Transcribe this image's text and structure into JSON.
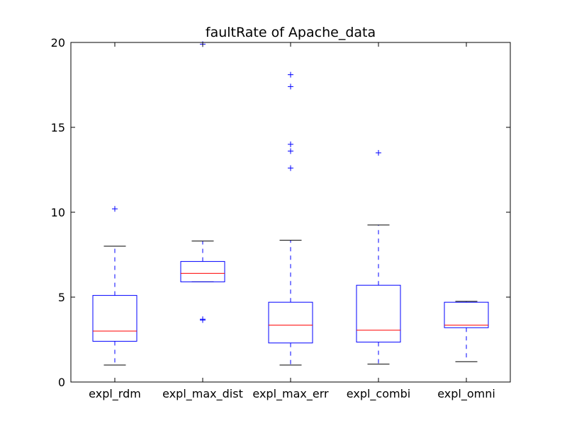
{
  "chart_data": {
    "type": "boxplot",
    "title": "faultRate of Apache_data",
    "xlabel": "",
    "ylabel": "",
    "ylim": [
      0,
      20
    ],
    "yticks": [
      "0",
      "5",
      "10",
      "15",
      "20"
    ],
    "grid": false,
    "categories": [
      "expl_rdm",
      "expl_max_dist",
      "expl_max_err",
      "expl_combi",
      "expl_omni"
    ],
    "boxes": [
      {
        "category": "expl_rdm",
        "whisker_low": 1.0,
        "q1": 2.4,
        "median": 3.0,
        "q3": 5.1,
        "whisker_high": 8.0,
        "outliers": [
          10.2
        ]
      },
      {
        "category": "expl_max_dist",
        "whisker_low": 5.9,
        "q1": 5.9,
        "median": 6.4,
        "q3": 7.1,
        "whisker_high": 8.3,
        "outliers": [
          3.65,
          3.7,
          19.9
        ]
      },
      {
        "category": "expl_max_err",
        "whisker_low": 1.0,
        "q1": 2.3,
        "median": 3.35,
        "q3": 4.7,
        "whisker_high": 8.35,
        "outliers": [
          12.6,
          13.6,
          14.0,
          17.4,
          18.1
        ]
      },
      {
        "category": "expl_combi",
        "whisker_low": 1.05,
        "q1": 2.35,
        "median": 3.05,
        "q3": 5.7,
        "whisker_high": 9.25,
        "outliers": [
          13.5
        ]
      },
      {
        "category": "expl_omni",
        "whisker_low": 1.2,
        "q1": 3.2,
        "median": 3.35,
        "q3": 4.7,
        "whisker_high": 4.75,
        "outliers": []
      }
    ],
    "colors": {
      "box": "#0000ff",
      "median": "#ff0000",
      "cap": "#000000",
      "whisker": "#0000ff",
      "outlier": "#0000ff"
    }
  }
}
